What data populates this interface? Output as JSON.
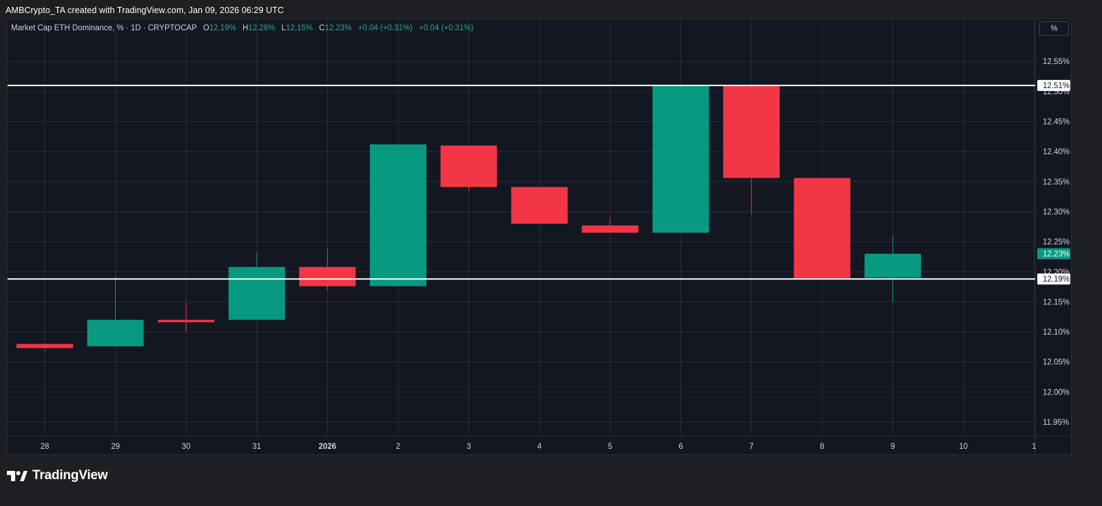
{
  "header": {
    "caption": "AMBCrypto_TA created with TradingView.com, Jan 09, 2026 06:29 UTC"
  },
  "legend": {
    "symbol": "Market Cap ETH Dominance, % · 1D · CRYPTOCAP",
    "o_label": "O",
    "o_value": "12.19%",
    "h_label": "H",
    "h_value": "12.26%",
    "l_label": "L",
    "l_value": "12.15%",
    "c_label": "C",
    "c_value": "12.23%",
    "change1": "+0.04 (+0.31%)",
    "change2": "+0.04 (+0.31%)"
  },
  "toolbar": {
    "scale_button": "%"
  },
  "brand": {
    "name": "TradingView"
  },
  "colors": {
    "up": "#089981",
    "down": "#f23645",
    "pane_bg": "#131722",
    "page_bg": "#1e1f22",
    "grid": "#2a2e39",
    "axis_text": "#d1d4dc",
    "level_line": "#ffffff"
  },
  "chart_data": {
    "type": "candlestick",
    "title": "Market Cap ETH Dominance, % · 1D · CRYPTOCAP",
    "x_ticks": [
      "28",
      "29",
      "30",
      "31",
      "2026",
      "2",
      "3",
      "4",
      "5",
      "6",
      "7",
      "8",
      "9",
      "10",
      "1"
    ],
    "y_ticks": [
      "12.55%",
      "12.50%",
      "12.45%",
      "12.40%",
      "12.35%",
      "12.30%",
      "12.25%",
      "12.20%",
      "12.15%",
      "12.10%",
      "12.05%",
      "12.00%",
      "11.95%"
    ],
    "ylim": [
      11.93,
      12.59
    ],
    "grid": true,
    "candles": [
      {
        "date": "Dec 28",
        "open": 12.08,
        "high": 12.08,
        "low": 12.067,
        "close": 12.073
      },
      {
        "date": "Dec 29",
        "open": 12.076,
        "high": 12.193,
        "low": 12.076,
        "close": 12.12
      },
      {
        "date": "Dec 30",
        "open": 12.12,
        "high": 12.148,
        "low": 12.1,
        "close": 12.116
      },
      {
        "date": "Dec 31",
        "open": 12.12,
        "high": 12.232,
        "low": 12.12,
        "close": 12.208
      },
      {
        "date": "Jan 1",
        "open": 12.208,
        "high": 12.238,
        "low": 12.17,
        "close": 12.176
      },
      {
        "date": "Jan 2",
        "open": 12.176,
        "high": 12.412,
        "low": 12.176,
        "close": 12.412
      },
      {
        "date": "Jan 3",
        "open": 12.41,
        "high": 12.41,
        "low": 12.334,
        "close": 12.341
      },
      {
        "date": "Jan 4",
        "open": 12.341,
        "high": 12.341,
        "low": 12.28,
        "close": 12.28
      },
      {
        "date": "Jan 5",
        "open": 12.277,
        "high": 12.29,
        "low": 12.265,
        "close": 12.265
      },
      {
        "date": "Jan 6",
        "open": 12.265,
        "high": 12.51,
        "low": 12.265,
        "close": 12.51
      },
      {
        "date": "Jan 7",
        "open": 12.51,
        "high": 12.51,
        "low": 12.295,
        "close": 12.356
      },
      {
        "date": "Jan 8",
        "open": 12.356,
        "high": 12.356,
        "low": 12.188,
        "close": 12.188
      },
      {
        "date": "Jan 9",
        "open": 12.19,
        "high": 12.26,
        "low": 12.15,
        "close": 12.23
      }
    ],
    "horizontal_levels": [
      {
        "value": 12.51,
        "label": "12.51%"
      },
      {
        "value": 12.188,
        "label": "12.19%"
      }
    ],
    "last_price": {
      "value": 12.23,
      "label": "12.23%"
    }
  }
}
